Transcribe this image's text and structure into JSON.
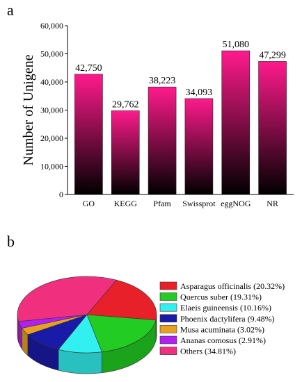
{
  "panels": {
    "a": "a",
    "b": "b"
  },
  "chart_data": [
    {
      "type": "bar",
      "categories": [
        "GO",
        "KEGG",
        "Pfam",
        "Swissprot",
        "eggNOG",
        "NR"
      ],
      "values": [
        42750,
        29762,
        38223,
        34093,
        51080,
        47299
      ],
      "value_labels": [
        "42,750",
        "29,762",
        "38,223",
        "34,093",
        "51,080",
        "47,299"
      ],
      "ylabel": "Number of Unigene",
      "ylim": [
        0,
        60000
      ],
      "yticks": [
        0,
        10000,
        20000,
        30000,
        40000,
        50000,
        60000
      ],
      "ytick_labels": [
        "0",
        "10,000",
        "20,000",
        "30,000",
        "40,000",
        "50,000",
        "60,000"
      ],
      "bar_gradient": [
        "#000000",
        "#ff1a8c"
      ],
      "grid": false
    },
    {
      "type": "pie",
      "style": "3d",
      "legend_position": "right",
      "slices": [
        {
          "name": "Asparagus officinalis (20.32%)",
          "value": 20.32,
          "color": "#e8202a"
        },
        {
          "name": "Quercus suber (19.31%)",
          "value": 19.31,
          "color": "#22cc22"
        },
        {
          "name": "Elaeis guineensis (10.16%)",
          "value": 10.16,
          "color": "#33f0f0"
        },
        {
          "name": "Phoenix dactylifera (9.48%)",
          "value": 9.48,
          "color": "#1a1aa8"
        },
        {
          "name": "Musa acuminata (3.02%)",
          "value": 3.02,
          "color": "#e8a020"
        },
        {
          "name": "Ananas comosus (2.91%)",
          "value": 2.91,
          "color": "#b020f0"
        },
        {
          "name": "Others (34.81%)",
          "value": 34.81,
          "color": "#f0307f"
        }
      ]
    }
  ]
}
